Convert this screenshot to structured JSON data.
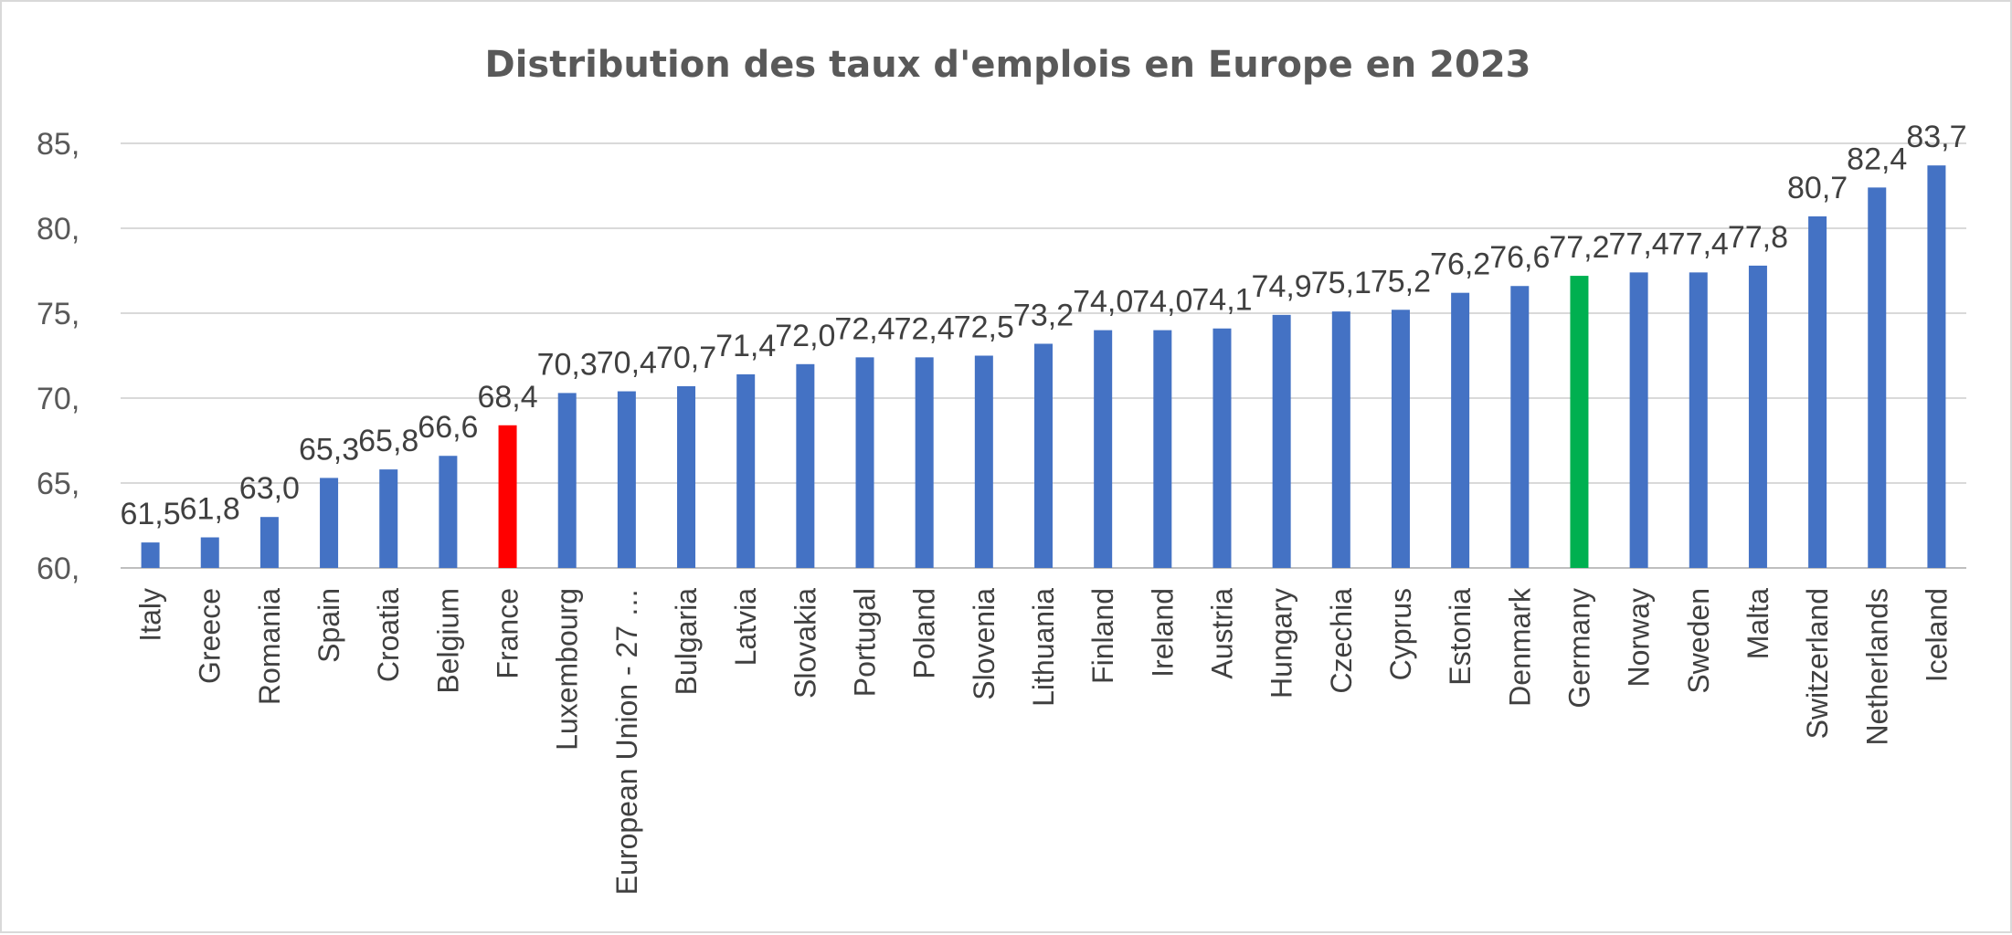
{
  "chart_data": {
    "type": "bar",
    "title": "Distribution des taux d'emplois en Europe en 2023",
    "xlabel": "",
    "ylabel": "",
    "ylim": [
      60,
      85
    ],
    "yticks": [
      60,
      65,
      70,
      75,
      80,
      85
    ],
    "ytick_labels": [
      "60,",
      "65,",
      "70,",
      "75,",
      "80,",
      "85,"
    ],
    "grid": true,
    "legend": "none",
    "categories": [
      "Italy",
      "Greece",
      "Romania",
      "Spain",
      "Croatia",
      "Belgium",
      "France",
      "Luxembourg",
      "European Union - 27 …",
      "Bulgaria",
      "Latvia",
      "Slovakia",
      "Portugal",
      "Poland",
      "Slovenia",
      "Lithuania",
      "Finland",
      "Ireland",
      "Austria",
      "Hungary",
      "Czechia",
      "Cyprus",
      "Estonia",
      "Denmark",
      "Germany",
      "Norway",
      "Sweden",
      "Malta",
      "Switzerland",
      "Netherlands",
      "Iceland"
    ],
    "values": [
      61.5,
      61.8,
      63.0,
      65.3,
      65.8,
      66.6,
      68.4,
      70.3,
      70.4,
      70.7,
      71.4,
      72.0,
      72.4,
      72.4,
      72.5,
      73.2,
      74.0,
      74.0,
      74.1,
      74.9,
      75.1,
      75.2,
      76.2,
      76.6,
      77.2,
      77.4,
      77.4,
      77.8,
      80.7,
      82.4,
      83.7
    ],
    "value_labels": [
      "61,5",
      "61,8",
      "63,0",
      "65,3",
      "65,8",
      "66,6",
      "68,4",
      "70,3",
      "70,4",
      "70,7",
      "71,4",
      "72,0",
      "72,4",
      "72,4",
      "72,5",
      "73,2",
      "74,0",
      "74,0",
      "74,1",
      "74,9",
      "75,1",
      "75,2",
      "76,2",
      "76,6",
      "77,2",
      "77,4",
      "77,4",
      "77,8",
      "80,7",
      "82,4",
      "83,7"
    ],
    "colors": {
      "default": "#4472c4",
      "highlights": {
        "France": "#ff0000",
        "Germany": "#00b050"
      }
    }
  }
}
